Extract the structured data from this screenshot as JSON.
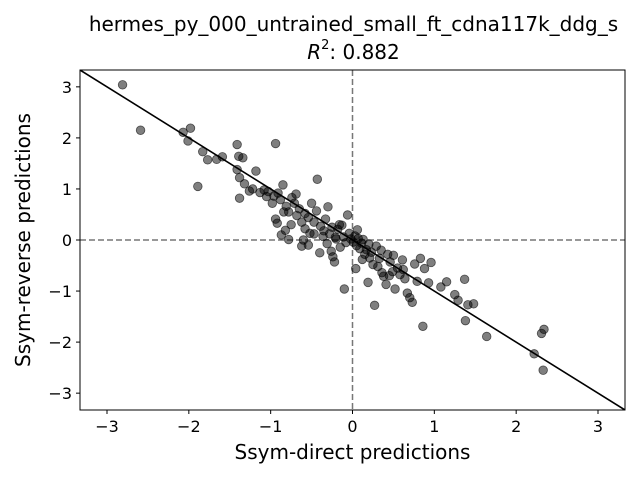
{
  "chart_data": {
    "type": "scatter",
    "title": "hermes_py_000_untrained_small_ft_cdna117k_ddg_s",
    "subtitle_prefix": "R",
    "subtitle_sup": "2",
    "subtitle_value": ": 0.882",
    "xlabel": "Ssym-direct predictions",
    "ylabel": "Ssym-reverse predictions",
    "xlim": [
      -3.33,
      3.33
    ],
    "ylim": [
      -3.33,
      3.33
    ],
    "xticks": [
      -3,
      -2,
      -1,
      0,
      1,
      2,
      3
    ],
    "yticks": [
      -3,
      -2,
      -1,
      0,
      1,
      2,
      3
    ],
    "xtick_labels": [
      "−3",
      "−2",
      "−1",
      "0",
      "1",
      "2",
      "3"
    ],
    "ytick_labels": [
      "−3",
      "−2",
      "−1",
      "0",
      "1",
      "2",
      "3"
    ],
    "grid": false,
    "reference_lines": {
      "diagonal": "y = -x",
      "horizontal_dashed": 0,
      "vertical_dashed": 0
    },
    "marker_color": "#000000",
    "marker_alpha": 0.5,
    "points": [
      [
        -2.81,
        3.04
      ],
      [
        -2.59,
        2.15
      ],
      [
        -2.07,
        2.11
      ],
      [
        -1.98,
        2.19
      ],
      [
        -2.01,
        1.94
      ],
      [
        -1.89,
        1.05
      ],
      [
        -1.83,
        1.73
      ],
      [
        -1.77,
        1.57
      ],
      [
        -1.66,
        1.58
      ],
      [
        -1.59,
        1.63
      ],
      [
        -1.41,
        1.87
      ],
      [
        -1.39,
        1.64
      ],
      [
        -1.34,
        1.61
      ],
      [
        -1.41,
        1.38
      ],
      [
        -1.38,
        1.22
      ],
      [
        -1.32,
        1.1
      ],
      [
        -1.38,
        0.82
      ],
      [
        -1.18,
        1.35
      ],
      [
        -1.22,
        1.0
      ],
      [
        -1.13,
        0.93
      ],
      [
        -1.08,
        0.98
      ],
      [
        -1.03,
        0.95
      ],
      [
        -0.94,
        1.89
      ],
      [
        -0.96,
        0.86
      ],
      [
        -0.98,
        0.72
      ],
      [
        -0.91,
        0.92
      ],
      [
        -0.88,
        0.79
      ],
      [
        -0.85,
        1.08
      ],
      [
        -0.81,
        0.66
      ],
      [
        -0.94,
        0.41
      ],
      [
        -0.92,
        0.33
      ],
      [
        -0.82,
        0.19
      ],
      [
        -0.78,
        0.55
      ],
      [
        -0.74,
        0.83
      ],
      [
        -0.71,
        0.72
      ],
      [
        -0.68,
        0.48
      ],
      [
        -0.65,
        0.61
      ],
      [
        -0.62,
        0.35
      ],
      [
        -0.58,
        0.52
      ],
      [
        -0.54,
        0.44
      ],
      [
        -0.58,
        0.22
      ],
      [
        -0.62,
        -0.12
      ],
      [
        -0.52,
        0.13
      ],
      [
        -0.47,
        0.35
      ],
      [
        -0.44,
        0.57
      ],
      [
        -0.43,
        1.19
      ],
      [
        -0.39,
        0.27
      ],
      [
        -0.35,
        0.18
      ],
      [
        -0.33,
        0.41
      ],
      [
        -0.31,
        -0.07
      ],
      [
        -0.28,
        0.12
      ],
      [
        -0.26,
        -0.22
      ],
      [
        -0.24,
        -0.33
      ],
      [
        -0.22,
        -0.43
      ],
      [
        -0.21,
        0.05
      ],
      [
        -0.18,
        0.21
      ],
      [
        -0.15,
        -0.14
      ],
      [
        -0.13,
        0.29
      ],
      [
        -0.11,
        0.06
      ],
      [
        -0.08,
        -0.05
      ],
      [
        -0.06,
        0.49
      ],
      [
        -0.04,
        0.13
      ],
      [
        -0.02,
        0.02
      ],
      [
        0.01,
        -0.04
      ],
      [
        0.03,
        0.08
      ],
      [
        0.05,
        -0.11
      ],
      [
        0.04,
        -0.56
      ],
      [
        0.07,
        0.03
      ],
      [
        0.09,
        -0.17
      ],
      [
        0.11,
        -0.06
      ],
      [
        0.13,
        0.01
      ],
      [
        0.15,
        -0.28
      ],
      [
        0.17,
        -0.19
      ],
      [
        0.19,
        -0.83
      ],
      [
        0.21,
        -0.35
      ],
      [
        0.23,
        -0.24
      ],
      [
        0.25,
        -0.48
      ],
      [
        0.27,
        -1.28
      ],
      [
        0.29,
        -0.12
      ],
      [
        0.31,
        -0.52
      ],
      [
        0.33,
        -0.36
      ],
      [
        0.36,
        -0.64
      ],
      [
        0.38,
        -0.71
      ],
      [
        0.41,
        -0.87
      ],
      [
        0.43,
        -0.28
      ],
      [
        0.46,
        -0.43
      ],
      [
        0.49,
        -0.62
      ],
      [
        0.52,
        -0.96
      ],
      [
        0.55,
        -0.55
      ],
      [
        0.58,
        -0.68
      ],
      [
        0.61,
        -0.39
      ],
      [
        0.64,
        -0.76
      ],
      [
        0.67,
        -1.04
      ],
      [
        0.7,
        -1.13
      ],
      [
        0.73,
        -1.22
      ],
      [
        0.76,
        -0.47
      ],
      [
        0.79,
        -0.81
      ],
      [
        0.83,
        -0.36
      ],
      [
        0.86,
        -1.69
      ],
      [
        0.88,
        -0.56
      ],
      [
        0.93,
        -0.84
      ],
      [
        0.96,
        -0.44
      ],
      [
        1.08,
        -0.92
      ],
      [
        1.15,
        -0.82
      ],
      [
        1.25,
        -1.07
      ],
      [
        1.29,
        -1.18
      ],
      [
        1.37,
        -0.77
      ],
      [
        1.41,
        -1.27
      ],
      [
        1.38,
        -1.58
      ],
      [
        1.48,
        -1.25
      ],
      [
        1.64,
        -1.89
      ],
      [
        2.22,
        -2.23
      ],
      [
        2.31,
        -1.83
      ],
      [
        2.34,
        -1.75
      ],
      [
        2.33,
        -2.55
      ],
      [
        -0.1,
        -0.96
      ],
      [
        -0.78,
        0.01
      ],
      [
        -0.54,
        -0.1
      ],
      [
        -0.4,
        -0.25
      ],
      [
        -0.47,
        0.12
      ],
      [
        -0.36,
        0.07
      ],
      [
        -0.2,
        0.02
      ],
      [
        -0.16,
        0.3
      ],
      [
        0.06,
        0.2
      ],
      [
        0.12,
        -0.38
      ],
      [
        0.2,
        -0.08
      ],
      [
        0.35,
        -0.2
      ],
      [
        0.5,
        -0.3
      ],
      [
        0.62,
        -0.58
      ],
      [
        0.45,
        -0.7
      ],
      [
        -0.69,
        0.9
      ],
      [
        -0.84,
        0.55
      ],
      [
        -0.5,
        0.72
      ],
      [
        -0.3,
        0.65
      ],
      [
        -0.25,
        0.25
      ],
      [
        -1.05,
        0.85
      ],
      [
        -1.26,
        0.96
      ],
      [
        -0.87,
        0.1
      ],
      [
        -0.75,
        0.3
      ],
      [
        -0.6,
        0.0
      ]
    ]
  }
}
